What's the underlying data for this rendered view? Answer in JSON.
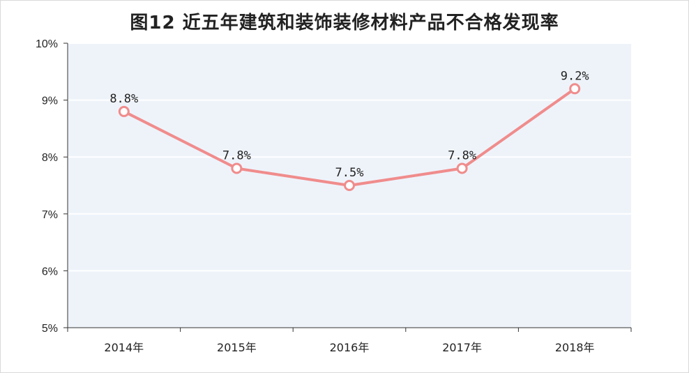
{
  "chart_data": {
    "type": "line",
    "title": "图12 近五年建筑和装饰装修材料产品不合格发现率",
    "categories": [
      "2014年",
      "2015年",
      "2016年",
      "2017年",
      "2018年"
    ],
    "series": [
      {
        "values": [
          8.8,
          7.8,
          7.5,
          7.8,
          9.2
        ],
        "color": "#f08c8c"
      }
    ],
    "data_labels": [
      "8.8%",
      "7.8%",
      "7.5%",
      "7.8%",
      "9.2%"
    ],
    "ylim": [
      5,
      10
    ],
    "yticks": [
      5,
      6,
      7,
      8,
      9,
      10
    ],
    "ytick_labels": [
      "5%",
      "6%",
      "7%",
      "8%",
      "9%",
      "10%"
    ],
    "xlabel": "",
    "ylabel": "",
    "grid": true,
    "legend": "none",
    "colors": {
      "plot_background": "#eef3fa",
      "gridline": "#ffffff",
      "line": "#f08c8c",
      "marker_fill": "#ffffff"
    }
  }
}
